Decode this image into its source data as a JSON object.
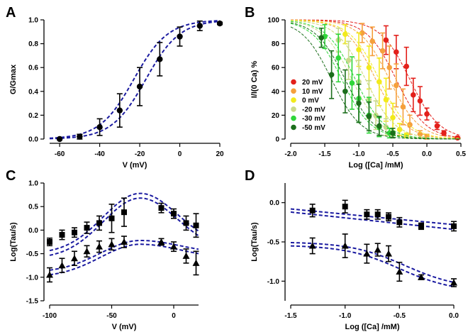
{
  "panels": [
    {
      "id": "A",
      "type": "scatter",
      "xlabel": "V (mV)",
      "ylabel": "G/Gmax",
      "xlim": [
        -65,
        20
      ],
      "ylim": [
        0,
        1.0
      ],
      "xticks": [
        -60,
        -40,
        -20,
        0,
        20
      ],
      "yticks": [
        0.0,
        0.2,
        0.4,
        0.6,
        0.8,
        1.0
      ],
      "ytick_labels": [
        "0.0",
        "0.2",
        "0.4",
        "0.6",
        "0.8",
        "1.0"
      ],
      "marker_color": "#000000",
      "fit_color": "#1a1aa0",
      "points": [
        {
          "x": -60,
          "y": 0.0,
          "err": 0.0,
          "m": "circle"
        },
        {
          "x": -50,
          "y": 0.02,
          "err": 0.02,
          "m": "circle"
        },
        {
          "x": -40,
          "y": 0.1,
          "err": 0.07,
          "m": "circle"
        },
        {
          "x": -30,
          "y": 0.24,
          "err": 0.14,
          "m": "circle"
        },
        {
          "x": -20,
          "y": 0.44,
          "err": 0.16,
          "m": "circle"
        },
        {
          "x": -10,
          "y": 0.67,
          "err": 0.14,
          "m": "circle"
        },
        {
          "x": 0,
          "y": 0.86,
          "err": 0.08,
          "m": "circle"
        },
        {
          "x": 10,
          "y": 0.95,
          "err": 0.04,
          "m": "circle"
        },
        {
          "x": 20,
          "y": 0.97,
          "err": 0.01,
          "m": "circle"
        }
      ],
      "fits": [
        {
          "kind": "boltz",
          "vh": -23,
          "k": 8.5
        },
        {
          "kind": "boltz",
          "vh": -17,
          "k": 8.5
        }
      ]
    },
    {
      "id": "B",
      "type": "scatter",
      "xlabel": "Log ([Ca] /mM)",
      "ylabel": "I/I(0 Ca) %",
      "xlim": [
        -2.0,
        0.5
      ],
      "ylim": [
        0,
        100
      ],
      "xticks": [
        -2.0,
        -1.5,
        -1.0,
        -0.5,
        0.0,
        0.5
      ],
      "xtick_labels": [
        "-2.0",
        "-1.5",
        "-1.0",
        "-0.5",
        "0.0",
        "0.5"
      ],
      "yticks": [
        0,
        20,
        40,
        60,
        80,
        100
      ],
      "legend": {
        "position": "middle-left",
        "entries": [
          {
            "label": "20 mV",
            "color": "#e3201b"
          },
          {
            "label": "10 mV",
            "color": "#f5a03c"
          },
          {
            "label": "0 mV",
            "color": "#f2ea1c"
          },
          {
            "label": "-20 mV",
            "color": "#c9d98a"
          },
          {
            "label": "-30 mV",
            "color": "#2fd63a"
          },
          {
            "label": "-50 mV",
            "color": "#1b6e1b"
          }
        ]
      },
      "series": [
        {
          "name": "20 mV",
          "color": "#e3201b",
          "ic50": [
            -0.25,
            -0.45
          ],
          "points": [
            [
              -0.6,
              83,
              12
            ],
            [
              -0.45,
              73,
              14
            ],
            [
              -0.3,
              61,
              16
            ],
            [
              -0.2,
              37,
              14
            ],
            [
              -0.1,
              32,
              12
            ],
            [
              0.0,
              21,
              5
            ],
            [
              0.15,
              11,
              3
            ],
            [
              0.25,
              5,
              2
            ],
            [
              0.45,
              1,
              1
            ]
          ]
        },
        {
          "name": "10 mV",
          "color": "#f5a03c",
          "ic50": [
            -0.55,
            -0.75
          ],
          "points": [
            [
              -0.95,
              89,
              8
            ],
            [
              -0.8,
              82,
              12
            ],
            [
              -0.65,
              74,
              15
            ],
            [
              -0.55,
              60,
              18
            ],
            [
              -0.45,
              45,
              18
            ],
            [
              -0.35,
              27,
              15
            ],
            [
              -0.25,
              12,
              8
            ],
            [
              -0.1,
              4,
              3
            ],
            [
              0.0,
              2,
              2
            ]
          ]
        },
        {
          "name": "0 mV",
          "color": "#f2ea1c",
          "ic50": [
            -0.7,
            -0.9
          ],
          "points": [
            [
              -1.2,
              88,
              8
            ],
            [
              -1.0,
              75,
              14
            ],
            [
              -0.85,
              60,
              18
            ],
            [
              -0.7,
              48,
              20
            ],
            [
              -0.6,
              33,
              18
            ],
            [
              -0.5,
              18,
              12
            ],
            [
              -0.4,
              8,
              5
            ],
            [
              -0.3,
              3,
              2
            ]
          ]
        },
        {
          "name": "-20 mV",
          "color": "#c9d98a",
          "ic50": [
            -0.9,
            -1.1
          ],
          "points": [
            [
              -1.3,
              83,
              10
            ],
            [
              -1.15,
              66,
              16
            ],
            [
              -1.0,
              48,
              18
            ],
            [
              -0.85,
              33,
              16
            ],
            [
              -0.75,
              20,
              12
            ],
            [
              -0.6,
              10,
              7
            ],
            [
              -0.5,
              4,
              3
            ]
          ]
        },
        {
          "name": "-30 mV",
          "color": "#2fd63a",
          "ic50": [
            -1.05,
            -1.25
          ],
          "points": [
            [
              -1.5,
              86,
              10
            ],
            [
              -1.3,
              68,
              20
            ],
            [
              -1.1,
              47,
              22
            ],
            [
              -1.0,
              34,
              20
            ],
            [
              -0.85,
              20,
              15
            ],
            [
              -0.7,
              10,
              8
            ],
            [
              -0.55,
              5,
              4
            ]
          ]
        },
        {
          "name": "-50 mV",
          "color": "#1b6e1b",
          "ic50": [
            -1.2,
            -1.4
          ],
          "points": [
            [
              -1.55,
              85,
              8
            ],
            [
              -1.4,
              54,
              20
            ],
            [
              -1.2,
              40,
              18
            ],
            [
              -1.0,
              30,
              16
            ],
            [
              -0.85,
              19,
              12
            ],
            [
              -0.7,
              11,
              8
            ],
            [
              -0.5,
              5,
              4
            ]
          ]
        }
      ]
    },
    {
      "id": "C",
      "type": "scatter",
      "xlabel": "V (mV)",
      "ylabel": "Log(Tau/s)",
      "xlim": [
        -100,
        20
      ],
      "ylim": [
        -1.5,
        1.0
      ],
      "xticks": [
        -100,
        -50,
        0
      ],
      "yticks": [
        -1.5,
        -1.0,
        -0.5,
        0.0,
        0.5,
        1.0
      ],
      "ytick_labels": [
        "-1.5",
        "-1.0",
        "-0.5",
        "0.0",
        "0.5",
        "1.0"
      ],
      "marker_color": "#000000",
      "fit_color": "#1a1aa0",
      "points": [
        {
          "x": -100,
          "y": -0.25,
          "err": 0.08,
          "m": "square"
        },
        {
          "x": -90,
          "y": -0.1,
          "err": 0.1,
          "m": "square"
        },
        {
          "x": -80,
          "y": -0.05,
          "err": 0.1,
          "m": "square"
        },
        {
          "x": -70,
          "y": 0.05,
          "err": 0.12,
          "m": "square"
        },
        {
          "x": -60,
          "y": 0.15,
          "err": 0.15,
          "m": "square"
        },
        {
          "x": -50,
          "y": 0.25,
          "err": 0.3,
          "m": "square"
        },
        {
          "x": -40,
          "y": 0.38,
          "err": 0.3,
          "m": "square"
        },
        {
          "x": -10,
          "y": 0.47,
          "err": 0.1,
          "m": "square"
        },
        {
          "x": 0,
          "y": 0.35,
          "err": 0.1,
          "m": "square"
        },
        {
          "x": 10,
          "y": 0.15,
          "err": 0.15,
          "m": "square"
        },
        {
          "x": 18,
          "y": 0.1,
          "err": 0.25,
          "m": "square"
        },
        {
          "x": -100,
          "y": -0.95,
          "err": 0.15,
          "m": "triangle"
        },
        {
          "x": -90,
          "y": -0.75,
          "err": 0.15,
          "m": "triangle"
        },
        {
          "x": -80,
          "y": -0.6,
          "err": 0.15,
          "m": "triangle"
        },
        {
          "x": -70,
          "y": -0.45,
          "err": 0.12,
          "m": "triangle"
        },
        {
          "x": -60,
          "y": -0.35,
          "err": 0.12,
          "m": "triangle"
        },
        {
          "x": -50,
          "y": -0.3,
          "err": 0.12,
          "m": "triangle"
        },
        {
          "x": -40,
          "y": -0.25,
          "err": 0.12,
          "m": "triangle"
        },
        {
          "x": -10,
          "y": -0.25,
          "err": 0.07,
          "m": "triangle"
        },
        {
          "x": 0,
          "y": -0.35,
          "err": 0.1,
          "m": "triangle"
        },
        {
          "x": 10,
          "y": -0.55,
          "err": 0.15,
          "m": "triangle"
        },
        {
          "x": 18,
          "y": -0.7,
          "err": 0.25,
          "m": "triangle"
        }
      ],
      "fits": [
        {
          "kind": "bell",
          "top": 0.78,
          "base": -0.35,
          "base2": -0.5,
          "mu": -27,
          "sigma": 30
        },
        {
          "kind": "bell",
          "top": 0.68,
          "base": -0.45,
          "base2": -0.6,
          "mu": -27,
          "sigma": 30
        },
        {
          "kind": "bell",
          "top": -0.22,
          "base": -0.5,
          "base2": -0.9,
          "mu": -27,
          "sigma": 32
        },
        {
          "kind": "bell",
          "top": -0.3,
          "base": -0.6,
          "base2": -1.0,
          "mu": -27,
          "sigma": 32
        }
      ]
    },
    {
      "id": "D",
      "type": "scatter",
      "xlabel": "Log ([Ca] /mM)",
      "ylabel": "Log(Tau/s)",
      "xlim": [
        -1.5,
        0.0
      ],
      "ylim": [
        -1.25,
        0.25
      ],
      "xticks": [
        -1.5,
        -1.0,
        -0.5,
        0.0
      ],
      "xtick_labels": [
        "-1.5",
        "-1.0",
        "-0.5",
        "0.0"
      ],
      "yticks": [
        -1.0,
        -0.5,
        0.0
      ],
      "ytick_labels": [
        "-1.0",
        "-0.5",
        "0.0"
      ],
      "marker_color": "#000000",
      "fit_color": "#1a1aa0",
      "points": [
        {
          "x": -1.3,
          "y": -0.1,
          "err": 0.08,
          "m": "square"
        },
        {
          "x": -1.0,
          "y": -0.05,
          "err": 0.08,
          "m": "square"
        },
        {
          "x": -0.8,
          "y": -0.15,
          "err": 0.06,
          "m": "square"
        },
        {
          "x": -0.7,
          "y": -0.15,
          "err": 0.06,
          "m": "square"
        },
        {
          "x": -0.6,
          "y": -0.18,
          "err": 0.05,
          "m": "square"
        },
        {
          "x": -0.5,
          "y": -0.25,
          "err": 0.06,
          "m": "square"
        },
        {
          "x": -0.3,
          "y": -0.3,
          "err": 0.04,
          "m": "square"
        },
        {
          "x": 0.0,
          "y": -0.3,
          "err": 0.06,
          "m": "square"
        },
        {
          "x": -1.3,
          "y": -0.55,
          "err": 0.1,
          "m": "triangle"
        },
        {
          "x": -1.0,
          "y": -0.55,
          "err": 0.15,
          "m": "triangle"
        },
        {
          "x": -0.8,
          "y": -0.65,
          "err": 0.12,
          "m": "triangle"
        },
        {
          "x": -0.7,
          "y": -0.6,
          "err": 0.08,
          "m": "triangle"
        },
        {
          "x": -0.6,
          "y": -0.65,
          "err": 0.1,
          "m": "triangle"
        },
        {
          "x": -0.5,
          "y": -0.88,
          "err": 0.12,
          "m": "triangle"
        },
        {
          "x": -0.3,
          "y": -0.95,
          "err": 0.03,
          "m": "triangle"
        },
        {
          "x": 0.0,
          "y": -1.02,
          "err": 0.05,
          "m": "triangle"
        }
      ],
      "fits": [
        {
          "kind": "lin",
          "y0": -0.08,
          "y1": -0.28
        },
        {
          "kind": "lin",
          "y0": -0.12,
          "y1": -0.34
        },
        {
          "kind": "sig",
          "hi": -0.5,
          "lo": -1.1,
          "mid": -0.45,
          "k": 0.25
        },
        {
          "kind": "sig",
          "hi": -0.54,
          "lo": -1.14,
          "mid": -0.5,
          "k": 0.25
        }
      ]
    }
  ]
}
